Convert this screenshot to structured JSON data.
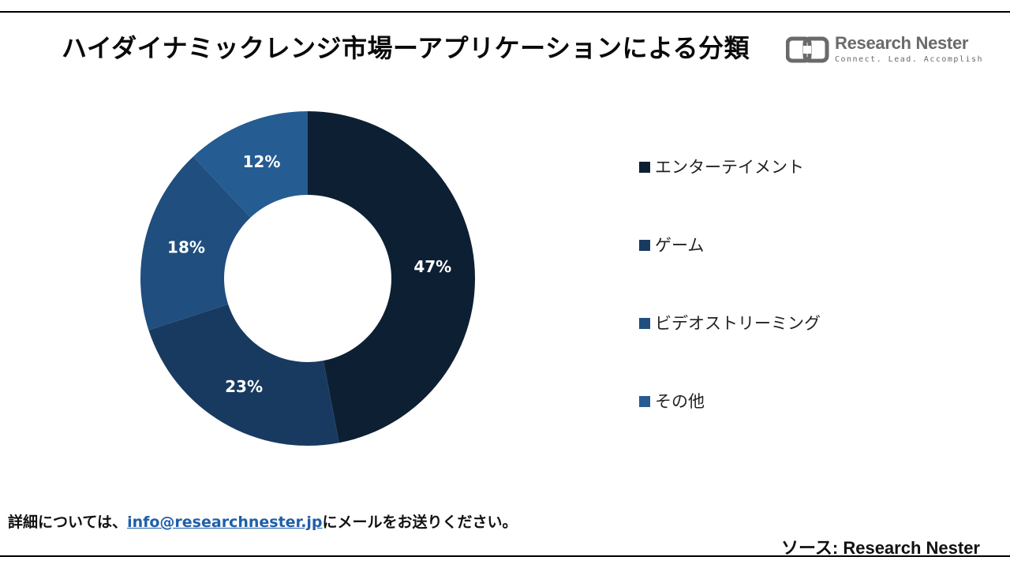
{
  "header": {
    "title": "ハイダイナミックレンジ市場ーアプリケーションによる分類"
  },
  "logo": {
    "name": "Research Nester",
    "tagline": "Connect. Lead. Accomplish",
    "icon": "research-nester-logo-icon"
  },
  "chart_data": {
    "type": "pie",
    "donut": true,
    "legend_position": "right",
    "categories": [
      "エンターテイメント",
      "ゲーム",
      "ビデオストリーミング",
      "その他"
    ],
    "values": [
      47,
      23,
      18,
      12
    ],
    "labels": [
      "47%",
      "23%",
      "18%",
      "12%"
    ],
    "colors": [
      "#0d1f33",
      "#183a60",
      "#1f4e7f",
      "#255c92"
    ]
  },
  "footer": {
    "prefix": "詳細については、",
    "email": "info@researchnester.jp",
    "suffix": "にメールをお送りください。",
    "source": "ソース: Research Nester"
  }
}
